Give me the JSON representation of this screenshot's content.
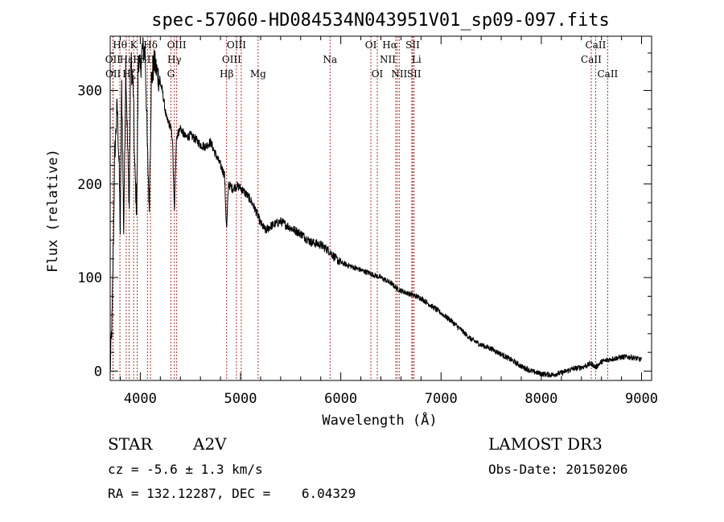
{
  "chart_data": {
    "type": "line",
    "title": "spec-57060-HD084534N043951V01_sp09-097.fits",
    "xlabel": "Wavelength (Å)",
    "ylabel": "Flux (relative)",
    "xlim": [
      3700,
      9100
    ],
    "ylim": [
      -10,
      358
    ],
    "xticks": [
      4000,
      5000,
      6000,
      7000,
      8000,
      9000
    ],
    "yticks": [
      0,
      100,
      200,
      300
    ],
    "line_color": "#000000",
    "marker_color": "#b03030",
    "spectrum_anchors": [
      [
        3700,
        0
      ],
      [
        3720,
        60
      ],
      [
        3745,
        230
      ],
      [
        3770,
        285
      ],
      [
        3790,
        215
      ],
      [
        3800,
        148
      ],
      [
        3815,
        305
      ],
      [
        3835,
        150
      ],
      [
        3855,
        330
      ],
      [
        3875,
        235
      ],
      [
        3890,
        175
      ],
      [
        3905,
        335
      ],
      [
        3930,
        300
      ],
      [
        3945,
        215
      ],
      [
        3965,
        170
      ],
      [
        3980,
        340
      ],
      [
        4000,
        320
      ],
      [
        4020,
        345
      ],
      [
        4050,
        340
      ],
      [
        4070,
        240
      ],
      [
        4090,
        175
      ],
      [
        4110,
        310
      ],
      [
        4140,
        330
      ],
      [
        4180,
        315
      ],
      [
        4220,
        300
      ],
      [
        4260,
        270
      ],
      [
        4300,
        262
      ],
      [
        4320,
        250
      ],
      [
        4340,
        170
      ],
      [
        4360,
        250
      ],
      [
        4400,
        260
      ],
      [
        4450,
        250
      ],
      [
        4500,
        252
      ],
      [
        4550,
        248
      ],
      [
        4600,
        242
      ],
      [
        4650,
        240
      ],
      [
        4700,
        245
      ],
      [
        4750,
        232
      ],
      [
        4800,
        220
      ],
      [
        4840,
        210
      ],
      [
        4861,
        150
      ],
      [
        4880,
        200
      ],
      [
        4920,
        195
      ],
      [
        4960,
        198
      ],
      [
        5000,
        196
      ],
      [
        5050,
        190
      ],
      [
        5100,
        183
      ],
      [
        5150,
        172
      ],
      [
        5200,
        158
      ],
      [
        5250,
        150
      ],
      [
        5300,
        155
      ],
      [
        5400,
        160
      ],
      [
        5500,
        153
      ],
      [
        5600,
        147
      ],
      [
        5700,
        138
      ],
      [
        5800,
        135
      ],
      [
        5890,
        128
      ],
      [
        5950,
        120
      ],
      [
        6000,
        116
      ],
      [
        6100,
        112
      ],
      [
        6200,
        108
      ],
      [
        6300,
        104
      ],
      [
        6400,
        100
      ],
      [
        6500,
        94
      ],
      [
        6563,
        88
      ],
      [
        6600,
        86
      ],
      [
        6700,
        82
      ],
      [
        6800,
        78
      ],
      [
        6900,
        70
      ],
      [
        7000,
        62
      ],
      [
        7100,
        54
      ],
      [
        7200,
        44
      ],
      [
        7300,
        34
      ],
      [
        7400,
        28
      ],
      [
        7500,
        24
      ],
      [
        7600,
        18
      ],
      [
        7700,
        12
      ],
      [
        7800,
        5
      ],
      [
        7900,
        0
      ],
      [
        8000,
        -3
      ],
      [
        8100,
        -4
      ],
      [
        8200,
        -2
      ],
      [
        8300,
        2
      ],
      [
        8400,
        4
      ],
      [
        8500,
        8
      ],
      [
        8542,
        4
      ],
      [
        8600,
        10
      ],
      [
        8700,
        13
      ],
      [
        8800,
        15
      ],
      [
        8900,
        15
      ],
      [
        9000,
        12
      ]
    ],
    "lines": [
      {
        "label": "Hθ",
        "wavelength": 3797,
        "row": 0,
        "anchor": "middle"
      },
      {
        "label": "K",
        "wavelength": 3934,
        "row": 0,
        "anchor": "middle"
      },
      {
        "label": "Hδ",
        "wavelength": 4102,
        "row": 0,
        "anchor": "middle"
      },
      {
        "label": "OIII",
        "wavelength": 4363,
        "row": 0,
        "anchor": "middle"
      },
      {
        "label": "OIII",
        "wavelength": 4959,
        "row": 0,
        "anchor": "middle"
      },
      {
        "label": "OI",
        "wavelength": 6300,
        "row": 0,
        "anchor": "middle"
      },
      {
        "label": "Hα",
        "wavelength": 6563,
        "row": 0,
        "anchor": "end"
      },
      {
        "label": "SII",
        "wavelength": 6717,
        "row": 0,
        "anchor": "middle"
      },
      {
        "label": "CaII",
        "wavelength": 8542,
        "row": 0,
        "anchor": "middle"
      },
      {
        "label": "OII",
        "wavelength": 3727,
        "row": 1,
        "anchor": "middle"
      },
      {
        "label": "Hε",
        "wavelength": 3860,
        "row": 1,
        "anchor": "middle"
      },
      {
        "label": "H",
        "wavelength": 3969,
        "row": 1,
        "anchor": "middle"
      },
      {
        "label": "SII",
        "wavelength": 4072,
        "row": 1,
        "anchor": "middle"
      },
      {
        "label": "Hγ",
        "wavelength": 4340,
        "row": 1,
        "anchor": "middle"
      },
      {
        "label": "OIII",
        "wavelength": 5007,
        "row": 1,
        "anchor": "end"
      },
      {
        "label": "Na",
        "wavelength": 5893,
        "row": 1,
        "anchor": "middle"
      },
      {
        "label": "NII",
        "wavelength": 6548,
        "row": 1,
        "anchor": "end"
      },
      {
        "label": "Li",
        "wavelength": 6708,
        "row": 1,
        "anchor": "start"
      },
      {
        "label": "CaII",
        "wavelength": 8498,
        "row": 1,
        "anchor": "middle"
      },
      {
        "label": "OII",
        "wavelength": 3729,
        "row": 2,
        "anchor": "middle"
      },
      {
        "label": "Hζ",
        "wavelength": 3889,
        "row": 2,
        "anchor": "middle"
      },
      {
        "label": "G",
        "wavelength": 4305,
        "row": 2,
        "anchor": "middle"
      },
      {
        "label": "Hβ",
        "wavelength": 4861,
        "row": 2,
        "anchor": "middle"
      },
      {
        "label": "Mg",
        "wavelength": 5175,
        "row": 2,
        "anchor": "middle"
      },
      {
        "label": "OI",
        "wavelength": 6364,
        "row": 2,
        "anchor": "middle"
      },
      {
        "label": "NII",
        "wavelength": 6583,
        "row": 2,
        "anchor": "middle"
      },
      {
        "label": "SII",
        "wavelength": 6731,
        "row": 2,
        "anchor": "middle"
      },
      {
        "label": "CaII",
        "wavelength": 8662,
        "row": 2,
        "anchor": "middle"
      }
    ]
  },
  "info": {
    "object_class": "STAR",
    "subclass": "A2V",
    "survey": "LAMOST DR3",
    "redshift": "cz = -5.6 ± 1.3 km/s",
    "obs_date": "Obs-Date: 20150206",
    "coords": "RA = 132.12287, DEC =    6.04329"
  }
}
